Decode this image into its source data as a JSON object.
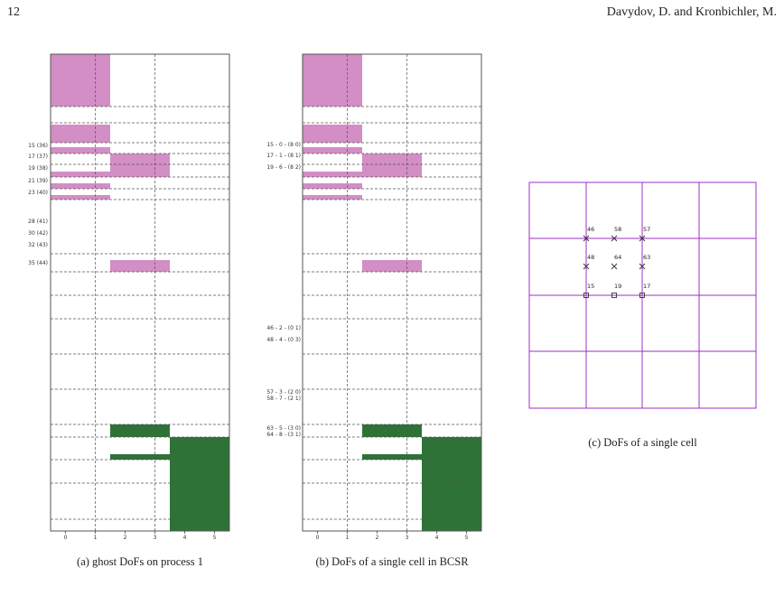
{
  "header": {
    "page_number": "12",
    "running_title": "Davydov, D. and Kronbichler, M."
  },
  "figure": {
    "colors": {
      "ghost_fill": "#d28ec5",
      "owned_fill": "#2e7238",
      "grid_line": "#555555",
      "cell_grid": "#9b30c4",
      "marker": "#333333"
    },
    "panel_a": {
      "caption": "(a) ghost DoFs on process 1",
      "x_ticks": [
        "0",
        "1",
        "2",
        "3",
        "4",
        "5"
      ],
      "row_labels": [
        "15 (36)",
        "17 (37)",
        "19 (38)",
        "21 (39)",
        "23 (40)",
        "28 (41)",
        "30 (42)",
        "32 (43)",
        "35 (44)"
      ]
    },
    "panel_b": {
      "caption": "(b) DoFs of a single cell in BCSR",
      "x_ticks": [
        "0",
        "1",
        "2",
        "3",
        "4",
        "5"
      ],
      "row_labels": [
        "15 - 0 - (8 0)",
        "17 - 1 - (8 1)",
        "19 - 6 - (8 2)",
        "46 - 2 - (0 1)",
        "48 - 4 - (0 3)",
        "57 - 3 - (2 0)",
        "58 - 7 - (2 1)",
        "63 - 5 - (3 0)",
        "64 - 8 - (3 1)"
      ]
    },
    "panel_c": {
      "caption": "(c) DoFs of a single cell",
      "dof_labels": [
        "46",
        "58",
        "57",
        "48",
        "64",
        "63",
        "15",
        "19",
        "17"
      ]
    }
  }
}
